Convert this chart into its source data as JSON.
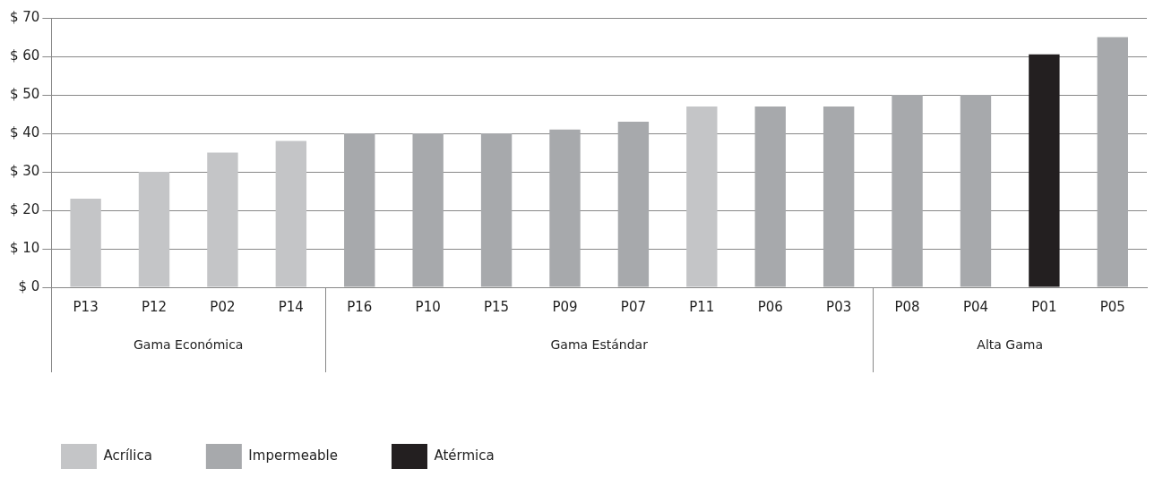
{
  "chart_data": {
    "type": "bar",
    "categories": [
      "P13",
      "P12",
      "P02",
      "P14",
      "P16",
      "P10",
      "P15",
      "P09",
      "P07",
      "P11",
      "P06",
      "P03",
      "P08",
      "P04",
      "P01",
      "P05"
    ],
    "series": [
      {
        "name": "Acrílica",
        "color": "#c4c5c7",
        "values": [
          23,
          30,
          35,
          38,
          null,
          null,
          null,
          null,
          null,
          47,
          null,
          null,
          null,
          null,
          null,
          null
        ]
      },
      {
        "name": "Impermeable",
        "color": "#a7a9ac",
        "values": [
          null,
          null,
          null,
          null,
          40,
          40,
          40,
          41,
          43,
          null,
          47,
          47,
          50,
          50,
          null,
          65
        ]
      },
      {
        "name": "Atérmica",
        "color": "#231f20",
        "values": [
          null,
          null,
          null,
          null,
          null,
          null,
          null,
          null,
          null,
          null,
          null,
          null,
          null,
          null,
          60.5,
          null
        ]
      }
    ],
    "ylim": [
      0,
      70
    ],
    "yticks": [
      {
        "value": 0,
        "label": "$ 0"
      },
      {
        "value": 10,
        "label": "$ 10"
      },
      {
        "value": 20,
        "label": "$ 20"
      },
      {
        "value": 30,
        "label": "$ 30"
      },
      {
        "value": 40,
        "label": "$ 40"
      },
      {
        "value": 50,
        "label": "$ 50"
      },
      {
        "value": 60,
        "label": "$ 60"
      },
      {
        "value": 70,
        "label": "$ 70"
      }
    ],
    "grid": "y",
    "legend": "bottom left",
    "annotations": [
      "Gama Económica",
      "Gama Estándar",
      "Alta Gama"
    ]
  }
}
